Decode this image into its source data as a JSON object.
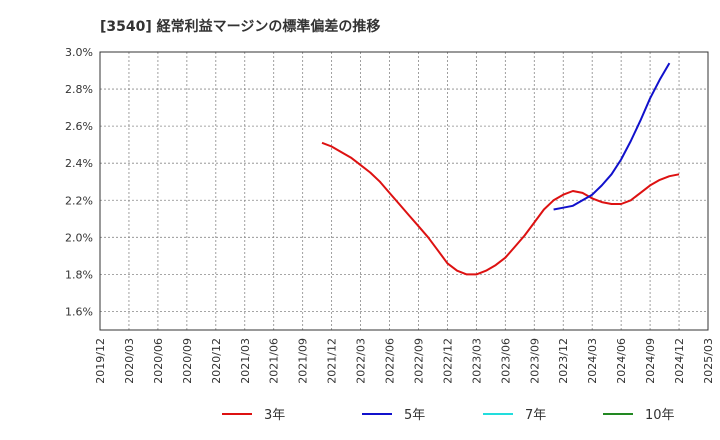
{
  "chart_data": {
    "type": "line",
    "title": "[3540]  経常利益マージンの標準偏差の推移",
    "xlabel": "",
    "ylabel": "",
    "ylim": [
      0.015,
      0.03
    ],
    "y_ticks": [
      0.016,
      0.018,
      0.02,
      0.022,
      0.024,
      0.026,
      0.028,
      0.03
    ],
    "y_tick_labels": [
      "1.6%",
      "1.8%",
      "2.0%",
      "2.2%",
      "2.4%",
      "2.6%",
      "2.8%",
      "3.0%"
    ],
    "x_tick_labels": [
      "2019/12",
      "2020/03",
      "2020/06",
      "2020/09",
      "2020/12",
      "2021/03",
      "2021/06",
      "2021/09",
      "2021/12",
      "2022/03",
      "2022/06",
      "2022/09",
      "2022/12",
      "2023/03",
      "2023/06",
      "2023/09",
      "2023/12",
      "2024/03",
      "2024/06",
      "2024/09",
      "2024/12",
      "2025/03"
    ],
    "x_month_start": "2019/12",
    "grid": true,
    "legend_position": "bottom",
    "series": [
      {
        "name": "3年",
        "color": "#dd1111",
        "points": [
          {
            "m": 23,
            "v": 0.0251
          },
          {
            "m": 24,
            "v": 0.0249
          },
          {
            "m": 25,
            "v": 0.0246
          },
          {
            "m": 26,
            "v": 0.0243
          },
          {
            "m": 27,
            "v": 0.0239
          },
          {
            "m": 28,
            "v": 0.0235
          },
          {
            "m": 29,
            "v": 0.023
          },
          {
            "m": 30,
            "v": 0.0224
          },
          {
            "m": 31,
            "v": 0.0218
          },
          {
            "m": 32,
            "v": 0.0212
          },
          {
            "m": 33,
            "v": 0.0206
          },
          {
            "m": 34,
            "v": 0.02
          },
          {
            "m": 35,
            "v": 0.0193
          },
          {
            "m": 36,
            "v": 0.0186
          },
          {
            "m": 37,
            "v": 0.0182
          },
          {
            "m": 38,
            "v": 0.018
          },
          {
            "m": 39,
            "v": 0.018
          },
          {
            "m": 40,
            "v": 0.0182
          },
          {
            "m": 41,
            "v": 0.0185
          },
          {
            "m": 42,
            "v": 0.0189
          },
          {
            "m": 43,
            "v": 0.0195
          },
          {
            "m": 44,
            "v": 0.0201
          },
          {
            "m": 45,
            "v": 0.0208
          },
          {
            "m": 46,
            "v": 0.0215
          },
          {
            "m": 47,
            "v": 0.022
          },
          {
            "m": 48,
            "v": 0.0223
          },
          {
            "m": 49,
            "v": 0.0225
          },
          {
            "m": 50,
            "v": 0.0224
          },
          {
            "m": 51,
            "v": 0.0221
          },
          {
            "m": 52,
            "v": 0.0219
          },
          {
            "m": 53,
            "v": 0.0218
          },
          {
            "m": 54,
            "v": 0.0218
          },
          {
            "m": 55,
            "v": 0.022
          },
          {
            "m": 56,
            "v": 0.0224
          },
          {
            "m": 57,
            "v": 0.0228
          },
          {
            "m": 58,
            "v": 0.0231
          },
          {
            "m": 59,
            "v": 0.0233
          },
          {
            "m": 60,
            "v": 0.0234
          }
        ]
      },
      {
        "name": "5年",
        "color": "#1111cc",
        "points": [
          {
            "m": 47,
            "v": 0.0215
          },
          {
            "m": 48,
            "v": 0.0216
          },
          {
            "m": 49,
            "v": 0.0217
          },
          {
            "m": 50,
            "v": 0.022
          },
          {
            "m": 51,
            "v": 0.0223
          },
          {
            "m": 52,
            "v": 0.0228
          },
          {
            "m": 53,
            "v": 0.0234
          },
          {
            "m": 54,
            "v": 0.0242
          },
          {
            "m": 55,
            "v": 0.0252
          },
          {
            "m": 56,
            "v": 0.0263
          },
          {
            "m": 57,
            "v": 0.0275
          },
          {
            "m": 58,
            "v": 0.0285
          },
          {
            "m": 59,
            "v": 0.0294
          }
        ]
      },
      {
        "name": "7年",
        "color": "#22dddd",
        "points": []
      },
      {
        "name": "10年",
        "color": "#228822",
        "points": []
      }
    ]
  }
}
